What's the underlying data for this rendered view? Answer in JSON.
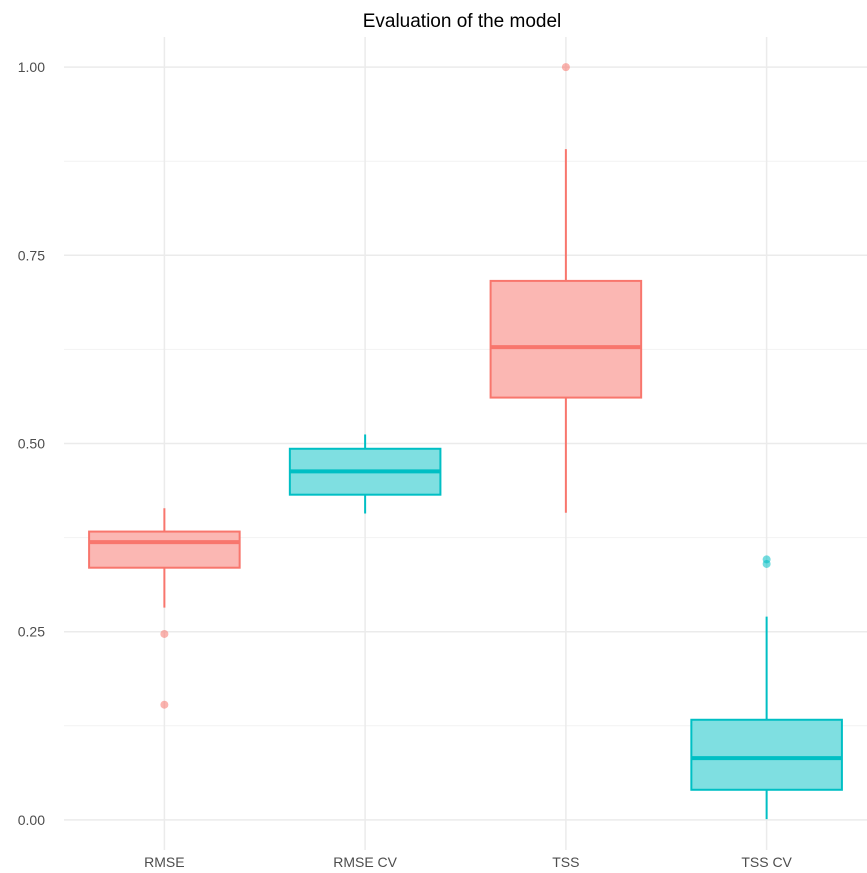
{
  "chart_data": {
    "type": "boxplot",
    "title": "Evaluation of the model",
    "xlabel": "",
    "ylabel": "",
    "ylim": [
      -0.04,
      1.04
    ],
    "yticks": [
      0.0,
      0.25,
      0.5,
      0.75,
      1.0
    ],
    "ytick_labels": [
      "0.00",
      "0.25",
      "0.50",
      "0.75",
      "1.00"
    ],
    "grid": true,
    "legend": "none",
    "categories": [
      "RMSE",
      "RMSE CV",
      "TSS",
      "TSS CV"
    ],
    "boxes": [
      {
        "category": "RMSE",
        "color": "#F8766D",
        "fill": "#FBB7B3",
        "whisker_low": 0.282,
        "q1": 0.335,
        "median": 0.369,
        "q3": 0.383,
        "whisker_high": 0.414,
        "outliers": [
          0.247,
          0.153
        ]
      },
      {
        "category": "RMSE CV",
        "color": "#00BFC4",
        "fill": "#7FDFE1",
        "whisker_low": 0.407,
        "q1": 0.432,
        "median": 0.463,
        "q3": 0.493,
        "whisker_high": 0.512,
        "outliers": []
      },
      {
        "category": "TSS",
        "color": "#F8766D",
        "fill": "#FBB7B3",
        "whisker_low": 0.408,
        "q1": 0.561,
        "median": 0.628,
        "q3": 0.716,
        "whisker_high": 0.891,
        "outliers": [
          1.0
        ]
      },
      {
        "category": "TSS CV",
        "color": "#00BFC4",
        "fill": "#7FDFE1",
        "whisker_low": 0.001,
        "q1": 0.04,
        "median": 0.082,
        "q3": 0.133,
        "whisker_high": 0.27,
        "outliers": [
          0.346,
          0.34
        ]
      }
    ]
  }
}
